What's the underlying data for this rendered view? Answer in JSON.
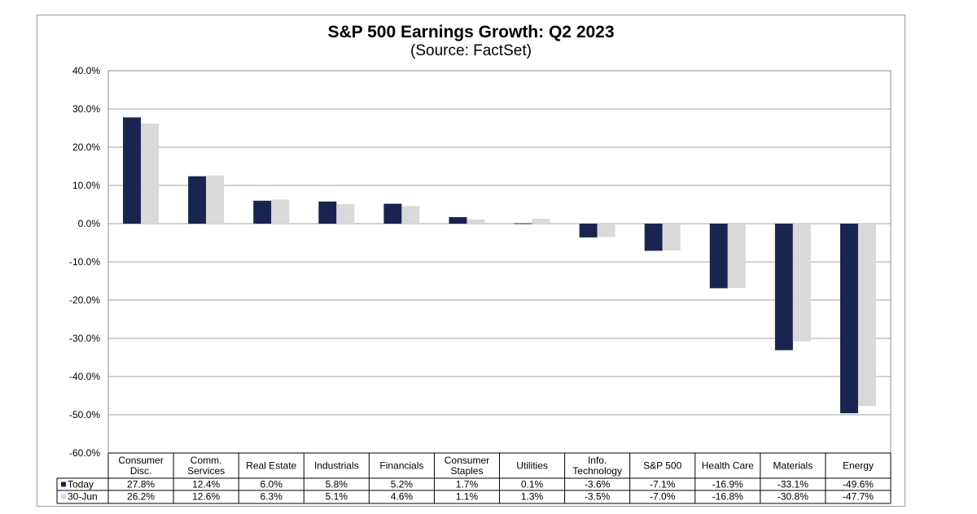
{
  "chart_data": {
    "type": "bar",
    "title": "S&P 500 Earnings Growth: Q2 2023",
    "subtitle": "(Source: FactSet)",
    "categories": [
      "Consumer Disc.",
      "Comm. Services",
      "Real Estate",
      "Industrials",
      "Financials",
      "Consumer Staples",
      "Utilities",
      "Info. Technology",
      "S&P 500",
      "Health Care",
      "Materials",
      "Energy"
    ],
    "series": [
      {
        "name": "Today",
        "color": "#1a2450",
        "values": [
          27.8,
          12.4,
          6.0,
          5.8,
          5.2,
          1.7,
          0.1,
          -3.6,
          -7.1,
          -16.9,
          -33.1,
          -49.6
        ]
      },
      {
        "name": "30-Jun",
        "color": "#d9d9d9",
        "values": [
          26.2,
          12.6,
          6.3,
          5.1,
          4.6,
          1.1,
          1.3,
          -3.5,
          -7.0,
          -16.8,
          -30.8,
          -47.7
        ]
      }
    ],
    "table": {
      "Today": [
        "27.8%",
        "12.4%",
        "6.0%",
        "5.8%",
        "5.2%",
        "1.7%",
        "0.1%",
        "-3.6%",
        "-7.1%",
        "-16.9%",
        "-33.1%",
        "-49.6%"
      ],
      "30-Jun": [
        "26.2%",
        "12.6%",
        "6.3%",
        "5.1%",
        "4.6%",
        "1.1%",
        "1.3%",
        "-3.5%",
        "-7.0%",
        "-16.8%",
        "-30.8%",
        "-47.7%"
      ]
    },
    "yticks": [
      "40.0%",
      "30.0%",
      "20.0%",
      "10.0%",
      "0.0%",
      "-10.0%",
      "-20.0%",
      "-30.0%",
      "-40.0%",
      "-50.0%",
      "-60.0%"
    ],
    "ylim": [
      -60,
      40
    ],
    "grid": true,
    "legend": "data-table"
  }
}
